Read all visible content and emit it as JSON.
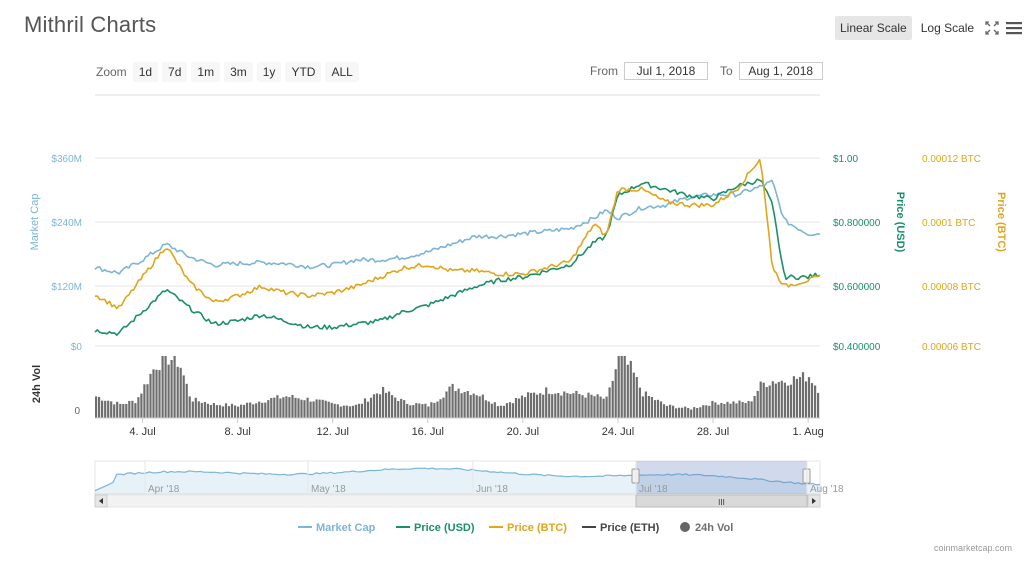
{
  "app": {
    "title": "Mithril Charts",
    "attribution": "coinmarketcap.com"
  },
  "scale": {
    "linear": "Linear Scale",
    "log": "Log Scale",
    "active": "linear"
  },
  "icons": {
    "fullscreen": "fullscreen-icon",
    "menu": "hamburger-menu-icon"
  },
  "zoom": {
    "label": "Zoom",
    "buttons": [
      "1d",
      "7d",
      "1m",
      "3m",
      "1y",
      "YTD",
      "ALL"
    ]
  },
  "range": {
    "from_label": "From",
    "from_value": "Jul 1, 2018",
    "to_label": "To",
    "to_value": "Aug 1, 2018"
  },
  "colors": {
    "market_cap": "#7cb5d6",
    "price_usd": "#1a9068",
    "price_btc": "#e0a51b",
    "price_eth": "#444444",
    "volume": "#6e6e6e",
    "grid": "#e6e6e6"
  },
  "chart_data": {
    "type": "line",
    "x_axis": {
      "start_day": 2,
      "end_day": 32.5,
      "tick_labels": [
        "4. Jul",
        "8. Jul",
        "12. Jul",
        "16. Jul",
        "20. Jul",
        "24. Jul",
        "28. Jul",
        "1. Aug"
      ],
      "tick_days": [
        4,
        8,
        12,
        16,
        20,
        24,
        28,
        32
      ]
    },
    "y_axes": [
      {
        "name": "Market Cap",
        "ticks": [
          "$0",
          "$120M",
          "$240M",
          "$360M"
        ],
        "range": [
          0,
          360
        ]
      },
      {
        "name": "Price (USD)",
        "ticks": [
          "$0.400000",
          "$0.600000",
          "$0.800000",
          "$1.00"
        ],
        "range": [
          0.4,
          1.0
        ]
      },
      {
        "name": "Price (BTC)",
        "ticks": [
          "0.00006 BTC",
          "0.00008 BTC",
          "0.0001 BTC",
          "0.00012 BTC"
        ],
        "range": [
          6e-05,
          0.00012
        ]
      }
    ],
    "volume_axis": {
      "name": "24h Vol",
      "ticks": [
        "0"
      ]
    },
    "series": [
      {
        "name": "Market Cap",
        "axis": 0,
        "x": [
          2,
          3,
          4,
          5,
          6,
          7,
          8,
          9,
          10,
          11,
          12,
          13,
          14,
          15,
          16,
          17,
          18,
          19,
          20,
          21,
          22,
          23,
          23.5,
          24,
          25,
          26,
          27,
          28,
          29,
          30,
          30.5,
          31,
          32,
          32.5
        ],
        "values": [
          150,
          140,
          165,
          195,
          170,
          155,
          158,
          160,
          158,
          152,
          155,
          165,
          165,
          170,
          180,
          195,
          210,
          210,
          215,
          220,
          225,
          245,
          260,
          245,
          265,
          270,
          285,
          290,
          290,
          305,
          315,
          240,
          215,
          215
        ]
      },
      {
        "name": "Price (USD)",
        "axis": 1,
        "x": [
          2,
          3,
          4,
          5,
          6,
          7,
          8,
          9,
          10,
          11,
          12,
          13,
          14,
          15,
          16,
          17,
          18,
          19,
          20,
          21,
          22,
          23,
          23.5,
          24,
          25,
          26,
          27,
          28,
          29,
          30,
          30.5,
          31,
          32,
          32.5
        ],
        "values": [
          0.45,
          0.44,
          0.51,
          0.58,
          0.52,
          0.47,
          0.48,
          0.5,
          0.48,
          0.46,
          0.46,
          0.47,
          0.48,
          0.51,
          0.53,
          0.56,
          0.59,
          0.61,
          0.62,
          0.64,
          0.66,
          0.73,
          0.75,
          0.88,
          0.92,
          0.9,
          0.88,
          0.87,
          0.91,
          0.93,
          0.85,
          0.62,
          0.62,
          0.63
        ]
      },
      {
        "name": "Price (BTC)",
        "axis": 2,
        "x": [
          2,
          3,
          4,
          5,
          6,
          7,
          8,
          9,
          10,
          11,
          12,
          13,
          14,
          15,
          16,
          17,
          18,
          19,
          20,
          21,
          22,
          23,
          23.5,
          24,
          25,
          26,
          27,
          28,
          29,
          30,
          30.5,
          31,
          32,
          32.5
        ],
        "values": [
          7.64e-05,
          7.2e-05,
          8.2e-05,
          9.2e-05,
          8e-05,
          7.4e-05,
          7.6e-05,
          7.9e-05,
          7.7e-05,
          7.6e-05,
          7.7e-05,
          7.9e-05,
          8.2e-05,
          8.5e-05,
          8.6e-05,
          8.4e-05,
          8.4e-05,
          8.3e-05,
          8.3e-05,
          8.5e-05,
          8.7e-05,
          9.9e-05,
          9.5e-05,
          0.00011,
          0.00011,
          0.000106,
          0.000105,
          0.000105,
          0.00011,
          0.00012,
          8.5e-05,
          7.9e-05,
          8.1e-05,
          8.2e-05
        ]
      }
    ],
    "volume_shape": {
      "x": [
        2,
        3,
        3.7,
        4.5,
        5,
        5.5,
        6,
        7,
        8,
        9,
        10,
        11,
        12,
        13,
        14,
        15,
        16,
        17,
        18,
        19,
        20,
        21,
        22,
        23,
        23.5,
        24,
        24.5,
        25,
        26,
        27,
        28,
        29,
        29.5,
        30,
        30.5,
        31,
        32,
        32.5
      ],
      "values": [
        0.35,
        0.22,
        0.28,
        0.85,
        0.98,
        0.9,
        0.3,
        0.22,
        0.2,
        0.28,
        0.35,
        0.3,
        0.22,
        0.2,
        0.45,
        0.25,
        0.2,
        0.5,
        0.4,
        0.2,
        0.35,
        0.45,
        0.4,
        0.35,
        0.3,
        0.98,
        0.8,
        0.4,
        0.2,
        0.15,
        0.25,
        0.25,
        0.25,
        0.55,
        0.6,
        0.6,
        0.68,
        0.4
      ]
    },
    "legend": [
      "Market Cap",
      "Price (USD)",
      "Price (BTC)",
      "Price (ETH)",
      "24h Vol"
    ],
    "navigator": {
      "labels": [
        "Apr '18",
        "May '18",
        "Jun '18",
        "Jul '18",
        "Aug '18"
      ],
      "scrollbar_grip": "III"
    }
  }
}
